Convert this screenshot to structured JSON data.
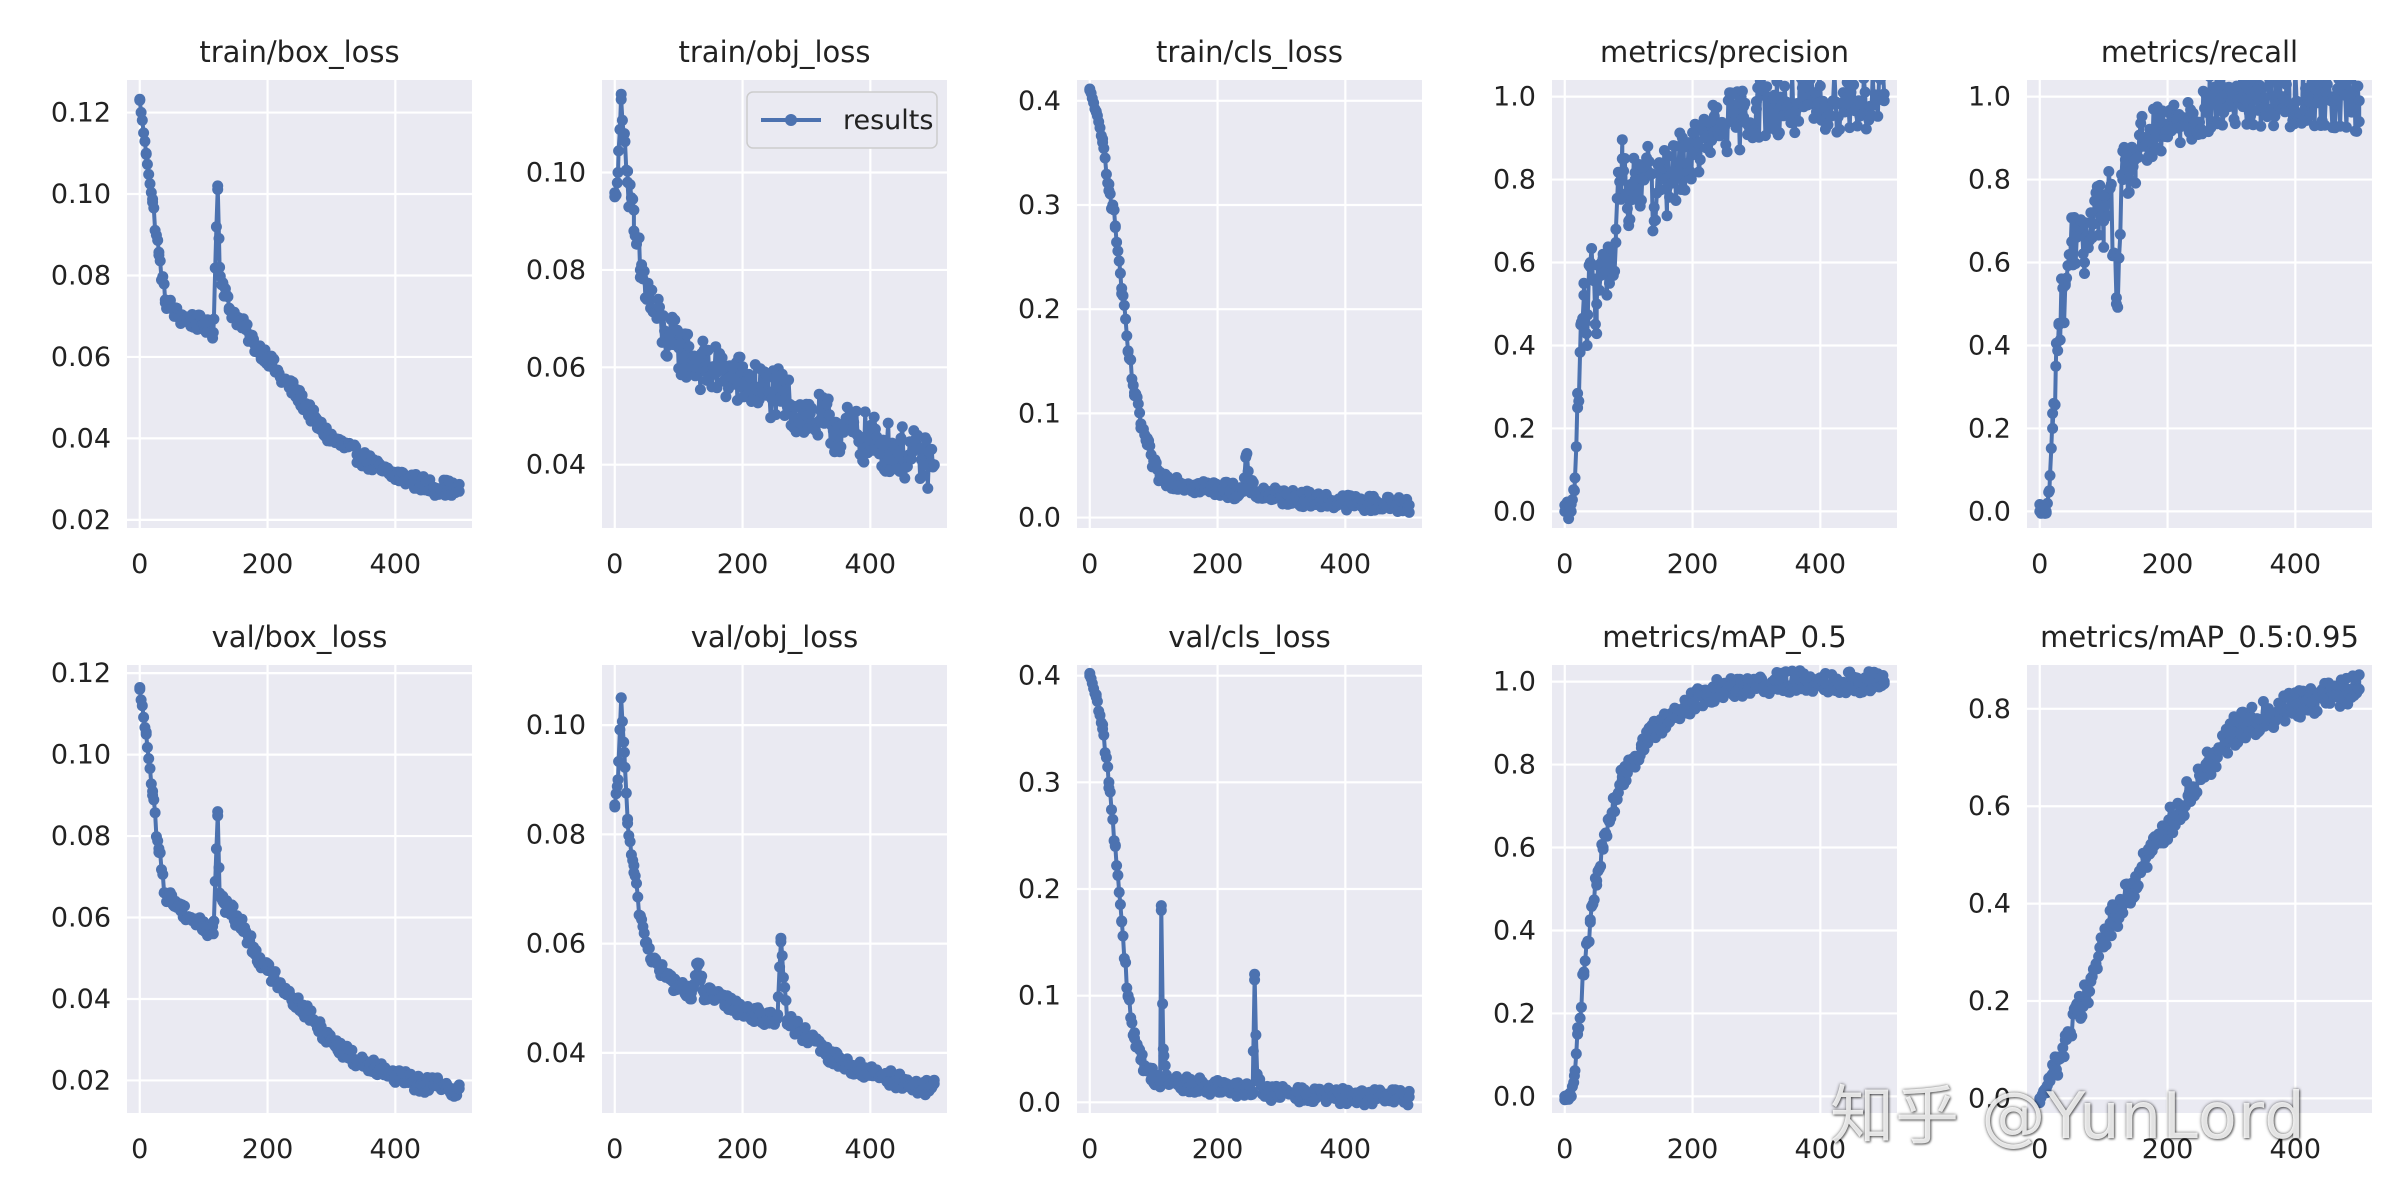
{
  "figure": {
    "series_name": "results",
    "legend_text": "results",
    "legend_position": "top-right of train/obj_loss panel",
    "line_color": "#4c72b0",
    "panel_bg": "#eaeaf2",
    "grid_color": "#ffffff",
    "watermark_text": "知乎 @YunLord"
  },
  "chart_data": [
    {
      "type": "line",
      "title": "train/box_loss",
      "xlim": [
        -20,
        520
      ],
      "ylim": [
        0.018,
        0.128
      ],
      "xticks": [
        0,
        200,
        400
      ],
      "xtick_labels": [
        "0",
        "200",
        "400"
      ],
      "yticks": [
        0.02,
        0.04,
        0.06,
        0.08,
        0.1,
        0.12
      ],
      "ytick_labels": [
        "0.02",
        "0.04",
        "0.06",
        "0.08",
        "0.10",
        "0.12"
      ],
      "series": [
        {
          "name": "results",
          "x": [
            0,
            10,
            20,
            30,
            40,
            60,
            80,
            100,
            115,
            122,
            125,
            130,
            140,
            160,
            180,
            200,
            220,
            240,
            260,
            280,
            300,
            320,
            340,
            360,
            380,
            400,
            420,
            440,
            460,
            480,
            500
          ],
          "y": [
            0.123,
            0.11,
            0.098,
            0.085,
            0.074,
            0.07,
            0.069,
            0.068,
            0.066,
            0.102,
            0.082,
            0.078,
            0.072,
            0.068,
            0.063,
            0.06,
            0.055,
            0.052,
            0.048,
            0.043,
            0.04,
            0.038,
            0.036,
            0.034,
            0.032,
            0.031,
            0.03,
            0.029,
            0.028,
            0.028,
            0.027
          ]
        }
      ]
    },
    {
      "type": "line",
      "title": "train/obj_loss",
      "xlim": [
        -20,
        520
      ],
      "ylim": [
        0.027,
        0.119
      ],
      "xticks": [
        0,
        200,
        400
      ],
      "xtick_labels": [
        "0",
        "200",
        "400"
      ],
      "yticks": [
        0.04,
        0.06,
        0.08,
        0.1
      ],
      "ytick_labels": [
        "0.04",
        "0.06",
        "0.08",
        "0.10"
      ],
      "series": [
        {
          "name": "results",
          "x": [
            0,
            5,
            10,
            15,
            20,
            30,
            40,
            60,
            80,
            100,
            120,
            140,
            160,
            180,
            200,
            220,
            240,
            260,
            280,
            300,
            320,
            340,
            360,
            380,
            400,
            420,
            440,
            460,
            480,
            500
          ],
          "y": [
            0.095,
            0.1,
            0.115,
            0.108,
            0.098,
            0.088,
            0.08,
            0.072,
            0.066,
            0.064,
            0.062,
            0.06,
            0.059,
            0.058,
            0.057,
            0.056,
            0.055,
            0.054,
            0.052,
            0.05,
            0.049,
            0.048,
            0.047,
            0.046,
            0.045,
            0.044,
            0.043,
            0.042,
            0.041,
            0.04
          ]
        }
      ]
    },
    {
      "type": "line",
      "title": "train/cls_loss",
      "xlim": [
        -20,
        520
      ],
      "ylim": [
        -0.01,
        0.42
      ],
      "xticks": [
        0,
        200,
        400
      ],
      "xtick_labels": [
        "0",
        "200",
        "400"
      ],
      "yticks": [
        0.0,
        0.1,
        0.2,
        0.3,
        0.4
      ],
      "ytick_labels": [
        "0.0",
        "0.1",
        "0.2",
        "0.3",
        "0.4"
      ],
      "series": [
        {
          "name": "results",
          "x": [
            0,
            10,
            20,
            30,
            40,
            50,
            60,
            70,
            80,
            90,
            100,
            110,
            120,
            140,
            160,
            180,
            200,
            220,
            240,
            245,
            250,
            260,
            280,
            300,
            340,
            380,
            420,
            460,
            500
          ],
          "y": [
            0.41,
            0.39,
            0.36,
            0.32,
            0.28,
            0.22,
            0.16,
            0.12,
            0.09,
            0.07,
            0.05,
            0.04,
            0.037,
            0.034,
            0.031,
            0.029,
            0.028,
            0.026,
            0.025,
            0.06,
            0.03,
            0.025,
            0.022,
            0.02,
            0.018,
            0.016,
            0.014,
            0.013,
            0.012
          ]
        }
      ]
    },
    {
      "type": "line",
      "title": "metrics/precision",
      "xlim": [
        -20,
        520
      ],
      "ylim": [
        -0.04,
        1.04
      ],
      "xticks": [
        0,
        200,
        400
      ],
      "xtick_labels": [
        "0",
        "200",
        "400"
      ],
      "yticks": [
        0.0,
        0.2,
        0.4,
        0.6,
        0.8,
        1.0
      ],
      "ytick_labels": [
        "0.0",
        "0.2",
        "0.4",
        "0.6",
        "0.8",
        "1.0"
      ],
      "series": [
        {
          "name": "results",
          "x": [
            0,
            10,
            15,
            20,
            25,
            30,
            35,
            40,
            50,
            60,
            70,
            80,
            90,
            100,
            110,
            120,
            130,
            140,
            150,
            160,
            180,
            200,
            220,
            240,
            260,
            280,
            300,
            340,
            380,
            420,
            460,
            500
          ],
          "y": [
            0.0,
            0.0,
            0.05,
            0.25,
            0.45,
            0.55,
            0.4,
            0.6,
            0.5,
            0.62,
            0.55,
            0.68,
            0.85,
            0.7,
            0.8,
            0.75,
            0.88,
            0.7,
            0.82,
            0.78,
            0.84,
            0.86,
            0.9,
            0.92,
            0.94,
            0.95,
            0.97,
            0.98,
            0.98,
            0.99,
            0.99,
            0.99
          ]
        }
      ]
    },
    {
      "type": "line",
      "title": "metrics/recall",
      "xlim": [
        -20,
        520
      ],
      "ylim": [
        -0.04,
        1.04
      ],
      "xticks": [
        0,
        200,
        400
      ],
      "xtick_labels": [
        "0",
        "200",
        "400"
      ],
      "yticks": [
        0.0,
        0.2,
        0.4,
        0.6,
        0.8,
        1.0
      ],
      "ytick_labels": [
        "0.0",
        "0.2",
        "0.4",
        "0.6",
        "0.8",
        "1.0"
      ],
      "series": [
        {
          "name": "results",
          "x": [
            0,
            10,
            15,
            20,
            25,
            30,
            40,
            50,
            60,
            70,
            80,
            90,
            100,
            110,
            120,
            130,
            140,
            150,
            160,
            180,
            200,
            220,
            240,
            260,
            280,
            300,
            340,
            380,
            420,
            460,
            500
          ],
          "y": [
            0.0,
            0.0,
            0.05,
            0.2,
            0.35,
            0.45,
            0.55,
            0.65,
            0.68,
            0.6,
            0.72,
            0.75,
            0.7,
            0.78,
            0.5,
            0.8,
            0.82,
            0.85,
            0.88,
            0.9,
            0.92,
            0.95,
            0.96,
            0.97,
            0.99,
            0.99,
            1.0,
            1.0,
            1.0,
            1.0,
            0.99
          ]
        }
      ]
    },
    {
      "type": "line",
      "title": "val/box_loss",
      "xlim": [
        -20,
        520
      ],
      "ylim": [
        0.012,
        0.122
      ],
      "xticks": [
        0,
        200,
        400
      ],
      "xtick_labels": [
        "0",
        "200",
        "400"
      ],
      "yticks": [
        0.02,
        0.04,
        0.06,
        0.08,
        0.1,
        0.12
      ],
      "ytick_labels": [
        "0.02",
        "0.04",
        "0.06",
        "0.08",
        "0.10",
        "0.12"
      ],
      "series": [
        {
          "name": "results",
          "x": [
            0,
            10,
            20,
            30,
            40,
            60,
            80,
            100,
            115,
            122,
            125,
            130,
            140,
            160,
            180,
            200,
            220,
            240,
            260,
            280,
            300,
            320,
            340,
            360,
            380,
            400,
            420,
            440,
            460,
            480,
            500
          ],
          "y": [
            0.116,
            0.105,
            0.09,
            0.076,
            0.066,
            0.063,
            0.06,
            0.058,
            0.056,
            0.086,
            0.066,
            0.064,
            0.062,
            0.058,
            0.052,
            0.047,
            0.044,
            0.04,
            0.037,
            0.033,
            0.03,
            0.027,
            0.025,
            0.024,
            0.023,
            0.021,
            0.02,
            0.019,
            0.019,
            0.018,
            0.018
          ]
        }
      ]
    },
    {
      "type": "line",
      "title": "val/obj_loss",
      "xlim": [
        -20,
        520
      ],
      "ylim": [
        0.029,
        0.111
      ],
      "xticks": [
        0,
        200,
        400
      ],
      "xtick_labels": [
        "0",
        "200",
        "400"
      ],
      "yticks": [
        0.04,
        0.06,
        0.08,
        0.1
      ],
      "ytick_labels": [
        "0.04",
        "0.06",
        "0.08",
        "0.10"
      ],
      "series": [
        {
          "name": "results",
          "x": [
            0,
            5,
            10,
            15,
            20,
            30,
            40,
            50,
            60,
            80,
            100,
            120,
            130,
            140,
            160,
            180,
            200,
            220,
            240,
            255,
            260,
            270,
            300,
            340,
            380,
            420,
            460,
            480,
            500
          ],
          "y": [
            0.085,
            0.09,
            0.105,
            0.095,
            0.082,
            0.073,
            0.065,
            0.06,
            0.057,
            0.054,
            0.052,
            0.051,
            0.056,
            0.051,
            0.05,
            0.049,
            0.048,
            0.047,
            0.046,
            0.047,
            0.061,
            0.046,
            0.043,
            0.039,
            0.037,
            0.036,
            0.034,
            0.033,
            0.035
          ]
        }
      ]
    },
    {
      "type": "line",
      "title": "val/cls_loss",
      "xlim": [
        -20,
        520
      ],
      "ylim": [
        -0.01,
        0.41
      ],
      "xticks": [
        0,
        200,
        400
      ],
      "xtick_labels": [
        "0",
        "200",
        "400"
      ],
      "yticks": [
        0.0,
        0.1,
        0.2,
        0.3,
        0.4
      ],
      "ytick_labels": [
        "0.0",
        "0.1",
        "0.2",
        "0.3",
        "0.4"
      ],
      "series": [
        {
          "name": "results",
          "x": [
            0,
            10,
            20,
            30,
            40,
            50,
            60,
            70,
            80,
            90,
            100,
            110,
            112,
            115,
            120,
            140,
            160,
            180,
            200,
            220,
            240,
            255,
            258,
            262,
            280,
            300,
            340,
            380,
            420,
            460,
            500
          ],
          "y": [
            0.4,
            0.38,
            0.35,
            0.3,
            0.24,
            0.17,
            0.1,
            0.06,
            0.04,
            0.03,
            0.025,
            0.02,
            0.18,
            0.05,
            0.02,
            0.018,
            0.016,
            0.015,
            0.013,
            0.012,
            0.011,
            0.01,
            0.12,
            0.02,
            0.009,
            0.008,
            0.007,
            0.006,
            0.005,
            0.005,
            0.005
          ]
        }
      ]
    },
    {
      "type": "line",
      "title": "metrics/mAP_0.5",
      "xlim": [
        -20,
        520
      ],
      "ylim": [
        -0.04,
        1.04
      ],
      "xticks": [
        0,
        200,
        400
      ],
      "xtick_labels": [
        "0",
        "200",
        "400"
      ],
      "yticks": [
        0.0,
        0.2,
        0.4,
        0.6,
        0.8,
        1.0
      ],
      "ytick_labels": [
        "0.0",
        "0.2",
        "0.4",
        "0.6",
        "0.8",
        "1.0"
      ],
      "series": [
        {
          "name": "results",
          "x": [
            0,
            10,
            15,
            20,
            30,
            40,
            50,
            60,
            70,
            80,
            90,
            100,
            110,
            120,
            130,
            140,
            160,
            180,
            200,
            220,
            240,
            260,
            280,
            300,
            340,
            380,
            420,
            460,
            500
          ],
          "y": [
            0.0,
            0.0,
            0.05,
            0.15,
            0.3,
            0.42,
            0.52,
            0.6,
            0.67,
            0.72,
            0.77,
            0.8,
            0.82,
            0.84,
            0.86,
            0.88,
            0.91,
            0.93,
            0.95,
            0.97,
            0.98,
            0.99,
            0.99,
            0.99,
            1.0,
            1.0,
            1.0,
            1.0,
            1.0
          ]
        }
      ]
    },
    {
      "type": "line",
      "title": "metrics/mAP_0.5:0.95",
      "xlim": [
        -20,
        520
      ],
      "ylim": [
        -0.03,
        0.89
      ],
      "xticks": [
        0,
        200,
        400
      ],
      "xtick_labels": [
        "0",
        "200",
        "400"
      ],
      "yticks": [
        0.0,
        0.2,
        0.4,
        0.6,
        0.8
      ],
      "ytick_labels": [
        "0.0",
        "0.2",
        "0.4",
        "0.6",
        "0.8"
      ],
      "series": [
        {
          "name": "results",
          "x": [
            0,
            10,
            20,
            30,
            40,
            60,
            80,
            100,
            110,
            120,
            130,
            140,
            160,
            180,
            200,
            220,
            240,
            260,
            280,
            300,
            340,
            380,
            420,
            460,
            500
          ],
          "y": [
            0.0,
            0.02,
            0.05,
            0.08,
            0.12,
            0.18,
            0.24,
            0.32,
            0.36,
            0.38,
            0.4,
            0.42,
            0.47,
            0.52,
            0.56,
            0.6,
            0.64,
            0.68,
            0.72,
            0.75,
            0.78,
            0.8,
            0.82,
            0.83,
            0.84
          ]
        }
      ]
    }
  ]
}
